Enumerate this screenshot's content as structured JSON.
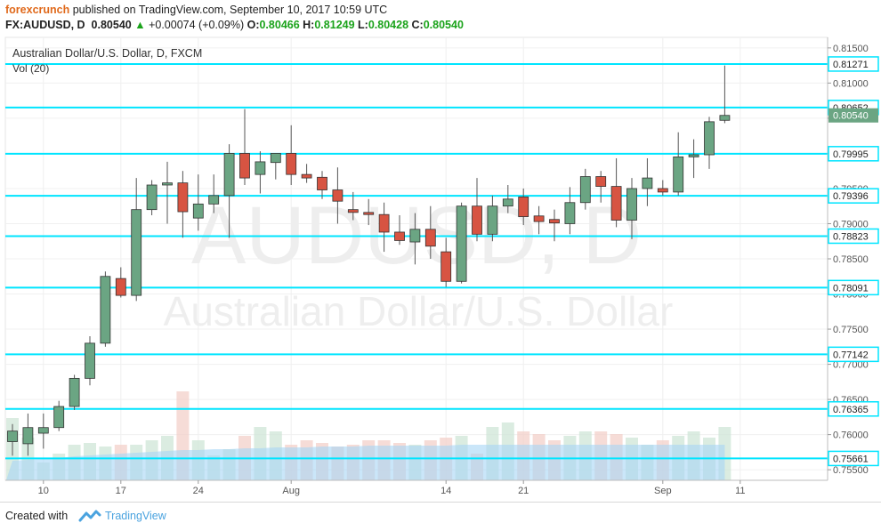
{
  "header": {
    "author": "forexcrunch",
    "published": "published on TradingView.com, September 10, 2017 10:59 UTC",
    "symbol": "FX:AUDUSD, D",
    "last": "0.80540",
    "change": "+0.00074 (+0.09%)",
    "o_label": "O:",
    "o_value": "0.80466",
    "h_label": "H:",
    "h_value": "0.81249",
    "l_label": "L:",
    "l_value": "0.80428",
    "c_label": "C:",
    "c_value": "0.80540"
  },
  "footer": {
    "created_with": "Created with",
    "brand": "TradingView"
  },
  "colors": {
    "up": "#6ba583",
    "down": "#d75442",
    "hline": "#00e5ff",
    "label_bg": "#6ba583",
    "volume_ma": "#a6d5f5",
    "grid": "#f0f0f0"
  },
  "chart_data": {
    "type": "candlestick",
    "title": "Australian Dollar/U.S. Dollar, D, FXCM",
    "indicator": "Vol (20)",
    "watermark_symbol": "AUDUSD, D",
    "watermark_name": "Australian Dollar/U.S. Dollar",
    "ylim": [
      0.7535,
      0.8165
    ],
    "y_ticks": [
      "0.81500",
      "0.81000",
      "0.80500",
      "0.80000",
      "0.79500",
      "0.79000",
      "0.78500",
      "0.78000",
      "0.77500",
      "0.77000",
      "0.76500",
      "0.76000",
      "0.75500"
    ],
    "x_ticks": [
      {
        "label": "10",
        "index": 2
      },
      {
        "label": "17",
        "index": 7
      },
      {
        "label": "24",
        "index": 12
      },
      {
        "label": "Aug",
        "index": 18
      },
      {
        "label": "14",
        "index": 28
      },
      {
        "label": "21",
        "index": 33
      },
      {
        "label": "Sep",
        "index": 42
      },
      {
        "label": "11",
        "index": 47
      }
    ],
    "horizontal_levels": [
      "0.81271",
      "0.80652",
      "0.79995",
      "0.79396",
      "0.78823",
      "0.78091",
      "0.77142",
      "0.76365",
      "0.75661"
    ],
    "current_price": "0.80540",
    "candles": [
      {
        "o": 0.759,
        "h": 0.7615,
        "l": 0.757,
        "c": 0.7605
      },
      {
        "o": 0.7587,
        "h": 0.763,
        "l": 0.757,
        "c": 0.761
      },
      {
        "o": 0.7602,
        "h": 0.763,
        "l": 0.758,
        "c": 0.761
      },
      {
        "o": 0.761,
        "h": 0.7648,
        "l": 0.7605,
        "c": 0.764
      },
      {
        "o": 0.764,
        "h": 0.7685,
        "l": 0.7635,
        "c": 0.768
      },
      {
        "o": 0.768,
        "h": 0.774,
        "l": 0.767,
        "c": 0.773
      },
      {
        "o": 0.773,
        "h": 0.7832,
        "l": 0.7725,
        "c": 0.7825
      },
      {
        "o": 0.7822,
        "h": 0.7838,
        "l": 0.7795,
        "c": 0.7798
      },
      {
        "o": 0.7798,
        "h": 0.7965,
        "l": 0.779,
        "c": 0.792
      },
      {
        "o": 0.792,
        "h": 0.7962,
        "l": 0.7912,
        "c": 0.7955
      },
      {
        "o": 0.7955,
        "h": 0.7988,
        "l": 0.79,
        "c": 0.7958
      },
      {
        "o": 0.7958,
        "h": 0.7975,
        "l": 0.788,
        "c": 0.7917
      },
      {
        "o": 0.7908,
        "h": 0.797,
        "l": 0.789,
        "c": 0.7928
      },
      {
        "o": 0.7928,
        "h": 0.797,
        "l": 0.7915,
        "c": 0.794
      },
      {
        "o": 0.794,
        "h": 0.8013,
        "l": 0.788,
        "c": 0.8
      },
      {
        "o": 0.8,
        "h": 0.8063,
        "l": 0.7955,
        "c": 0.7965
      },
      {
        "o": 0.797,
        "h": 0.8003,
        "l": 0.7943,
        "c": 0.7988
      },
      {
        "o": 0.7987,
        "h": 0.8,
        "l": 0.7963,
        "c": 0.8
      },
      {
        "o": 0.8,
        "h": 0.804,
        "l": 0.7955,
        "c": 0.797
      },
      {
        "o": 0.797,
        "h": 0.7985,
        "l": 0.7958,
        "c": 0.7965
      },
      {
        "o": 0.7966,
        "h": 0.7975,
        "l": 0.7935,
        "c": 0.7948
      },
      {
        "o": 0.7948,
        "h": 0.798,
        "l": 0.79,
        "c": 0.7932
      },
      {
        "o": 0.792,
        "h": 0.7945,
        "l": 0.7905,
        "c": 0.7916
      },
      {
        "o": 0.7916,
        "h": 0.7935,
        "l": 0.7898,
        "c": 0.7913
      },
      {
        "o": 0.7913,
        "h": 0.793,
        "l": 0.786,
        "c": 0.7888
      },
      {
        "o": 0.7888,
        "h": 0.7912,
        "l": 0.787,
        "c": 0.7876
      },
      {
        "o": 0.7874,
        "h": 0.7915,
        "l": 0.7842,
        "c": 0.7892
      },
      {
        "o": 0.7892,
        "h": 0.7925,
        "l": 0.785,
        "c": 0.7868
      },
      {
        "o": 0.786,
        "h": 0.788,
        "l": 0.781,
        "c": 0.7818
      },
      {
        "o": 0.7818,
        "h": 0.793,
        "l": 0.7815,
        "c": 0.7925
      },
      {
        "o": 0.7925,
        "h": 0.7965,
        "l": 0.7875,
        "c": 0.7885
      },
      {
        "o": 0.7885,
        "h": 0.794,
        "l": 0.7875,
        "c": 0.7925
      },
      {
        "o": 0.7925,
        "h": 0.7955,
        "l": 0.7915,
        "c": 0.7935
      },
      {
        "o": 0.7938,
        "h": 0.795,
        "l": 0.7898,
        "c": 0.791
      },
      {
        "o": 0.7911,
        "h": 0.7925,
        "l": 0.7885,
        "c": 0.7903
      },
      {
        "o": 0.7906,
        "h": 0.792,
        "l": 0.7875,
        "c": 0.7901
      },
      {
        "o": 0.79,
        "h": 0.7952,
        "l": 0.7885,
        "c": 0.793
      },
      {
        "o": 0.793,
        "h": 0.7978,
        "l": 0.792,
        "c": 0.7967
      },
      {
        "o": 0.7967,
        "h": 0.7975,
        "l": 0.793,
        "c": 0.7953
      },
      {
        "o": 0.7953,
        "h": 0.7993,
        "l": 0.7895,
        "c": 0.7905
      },
      {
        "o": 0.7905,
        "h": 0.7965,
        "l": 0.7878,
        "c": 0.795
      },
      {
        "o": 0.795,
        "h": 0.7993,
        "l": 0.7925,
        "c": 0.7965
      },
      {
        "o": 0.795,
        "h": 0.7962,
        "l": 0.794,
        "c": 0.7945
      },
      {
        "o": 0.7945,
        "h": 0.803,
        "l": 0.794,
        "c": 0.7995
      },
      {
        "o": 0.7995,
        "h": 0.802,
        "l": 0.7965,
        "c": 0.7998
      },
      {
        "o": 0.7998,
        "h": 0.8052,
        "l": 0.7978,
        "c": 0.8045
      },
      {
        "o": 0.8047,
        "h": 0.8125,
        "l": 0.8043,
        "c": 0.8054
      }
    ],
    "volume_bars": [
      70,
      48,
      20,
      30,
      40,
      42,
      38,
      40,
      40,
      45,
      50,
      100,
      45,
      28,
      35,
      50,
      60,
      55,
      40,
      45,
      42,
      38,
      40,
      45,
      45,
      42,
      40,
      45,
      48,
      50,
      30,
      60,
      65,
      55,
      52,
      45,
      50,
      55,
      55,
      52,
      48,
      40,
      45,
      50,
      55,
      48,
      60
    ],
    "volume_ma": [
      22,
      23,
      24,
      25,
      27,
      28,
      29,
      30,
      31,
      32,
      33,
      34,
      34,
      35,
      35,
      36,
      36,
      37,
      37,
      37,
      38,
      38,
      38,
      39,
      39,
      39,
      39,
      39,
      39,
      40,
      40,
      40,
      40,
      40,
      40,
      40,
      40,
      40,
      40,
      40,
      40,
      40,
      40,
      40,
      40,
      40,
      40
    ]
  }
}
